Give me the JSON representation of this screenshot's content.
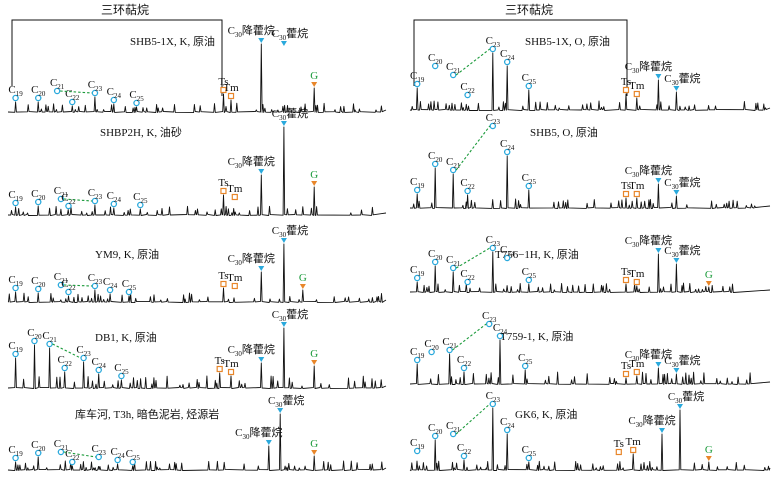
{
  "header_left": "三环萜烷",
  "header_right": "三环萜烷",
  "panels": [
    {
      "title": "SHB5-1X, K, 原油",
      "peaks": [
        {
          "label": "C19",
          "kind": "tricyclic"
        },
        {
          "label": "C20",
          "kind": "tricyclic"
        },
        {
          "label": "C21",
          "kind": "tricyclic"
        },
        {
          "label": "C22",
          "kind": "tricyclic"
        },
        {
          "label": "C23",
          "kind": "tricyclic"
        },
        {
          "label": "C24",
          "kind": "tricyclic"
        },
        {
          "label": "C25",
          "kind": "tricyclic"
        },
        {
          "label": "Ts",
          "kind": "ts"
        },
        {
          "label": "Tm",
          "kind": "tm"
        },
        {
          "label": "C30降藿烷",
          "kind": "hopane"
        },
        {
          "label": "C30藿烷",
          "kind": "hopane"
        },
        {
          "label": "G",
          "kind": "gammacerane"
        }
      ]
    },
    {
      "title": "SHBP2H, K, 油砂",
      "peaks": [
        {
          "label": "C19",
          "kind": "tricyclic"
        },
        {
          "label": "C20",
          "kind": "tricyclic"
        },
        {
          "label": "C21",
          "kind": "tricyclic"
        },
        {
          "label": "C22",
          "kind": "tricyclic"
        },
        {
          "label": "C23",
          "kind": "tricyclic"
        },
        {
          "label": "C24",
          "kind": "tricyclic"
        },
        {
          "label": "C25",
          "kind": "tricyclic"
        },
        {
          "label": "Ts",
          "kind": "ts"
        },
        {
          "label": "Tm",
          "kind": "tm"
        },
        {
          "label": "C30降藿烷",
          "kind": "hopane"
        },
        {
          "label": "C30藿烷",
          "kind": "hopane"
        },
        {
          "label": "G",
          "kind": "gammacerane"
        }
      ]
    },
    {
      "title": "YM9, K, 原油",
      "peaks": [
        {
          "label": "C19",
          "kind": "tricyclic"
        },
        {
          "label": "C20",
          "kind": "tricyclic"
        },
        {
          "label": "C21",
          "kind": "tricyclic"
        },
        {
          "label": "C22",
          "kind": "tricyclic"
        },
        {
          "label": "C23",
          "kind": "tricyclic"
        },
        {
          "label": "C24",
          "kind": "tricyclic"
        },
        {
          "label": "C25",
          "kind": "tricyclic"
        },
        {
          "label": "Ts",
          "kind": "ts"
        },
        {
          "label": "Tm",
          "kind": "tm"
        },
        {
          "label": "C30降藿烷",
          "kind": "hopane"
        },
        {
          "label": "C30藿烷",
          "kind": "hopane"
        },
        {
          "label": "G",
          "kind": "gammacerane"
        }
      ]
    },
    {
      "title": "DB1, K, 原油",
      "peaks": [
        {
          "label": "C19",
          "kind": "tricyclic"
        },
        {
          "label": "C20",
          "kind": "tricyclic"
        },
        {
          "label": "C21",
          "kind": "tricyclic"
        },
        {
          "label": "C22",
          "kind": "tricyclic"
        },
        {
          "label": "C23",
          "kind": "tricyclic"
        },
        {
          "label": "C24",
          "kind": "tricyclic"
        },
        {
          "label": "C25",
          "kind": "tricyclic"
        },
        {
          "label": "Ts",
          "kind": "ts"
        },
        {
          "label": "Tm",
          "kind": "tm"
        },
        {
          "label": "C30降藿烷",
          "kind": "hopane"
        },
        {
          "label": "C30藿烷",
          "kind": "hopane"
        },
        {
          "label": "G",
          "kind": "gammacerane"
        }
      ]
    },
    {
      "title": "库车河, T3h, 暗色泥岩, 烃源岩",
      "peaks": [
        {
          "label": "C19",
          "kind": "tricyclic"
        },
        {
          "label": "C20",
          "kind": "tricyclic"
        },
        {
          "label": "C21",
          "kind": "tricyclic"
        },
        {
          "label": "C22",
          "kind": "tricyclic"
        },
        {
          "label": "C23",
          "kind": "tricyclic"
        },
        {
          "label": "C24",
          "kind": "tricyclic"
        },
        {
          "label": "C25",
          "kind": "tricyclic"
        },
        {
          "label": "C30降藿烷",
          "kind": "hopane"
        },
        {
          "label": "C30藿烷",
          "kind": "hopane"
        },
        {
          "label": "G",
          "kind": "gammacerane"
        }
      ]
    },
    {
      "title": "SHB5-1X, O, 原油",
      "peaks": [
        {
          "label": "C19",
          "kind": "tricyclic"
        },
        {
          "label": "C20",
          "kind": "tricyclic"
        },
        {
          "label": "C21",
          "kind": "tricyclic"
        },
        {
          "label": "C22",
          "kind": "tricyclic"
        },
        {
          "label": "C23",
          "kind": "tricyclic"
        },
        {
          "label": "C24",
          "kind": "tricyclic"
        },
        {
          "label": "C25",
          "kind": "tricyclic"
        },
        {
          "label": "Ts",
          "kind": "ts"
        },
        {
          "label": "Tm",
          "kind": "tm"
        },
        {
          "label": "C30降藿烷",
          "kind": "hopane"
        },
        {
          "label": "C30藿烷",
          "kind": "hopane"
        }
      ]
    },
    {
      "title": "SHB5, O, 原油",
      "peaks": [
        {
          "label": "C19",
          "kind": "tricyclic"
        },
        {
          "label": "C20",
          "kind": "tricyclic"
        },
        {
          "label": "C21",
          "kind": "tricyclic"
        },
        {
          "label": "C22",
          "kind": "tricyclic"
        },
        {
          "label": "C23",
          "kind": "tricyclic"
        },
        {
          "label": "C24",
          "kind": "tricyclic"
        },
        {
          "label": "C25",
          "kind": "tricyclic"
        },
        {
          "label": "Ts",
          "kind": "ts"
        },
        {
          "label": "Tm",
          "kind": "tm"
        },
        {
          "label": "C30降藿烷",
          "kind": "hopane"
        },
        {
          "label": "C30藿烷",
          "kind": "hopane"
        }
      ]
    },
    {
      "title": "T756−1H, K, 原油",
      "peaks": [
        {
          "label": "C19",
          "kind": "tricyclic"
        },
        {
          "label": "C20",
          "kind": "tricyclic"
        },
        {
          "label": "C21",
          "kind": "tricyclic"
        },
        {
          "label": "C22",
          "kind": "tricyclic"
        },
        {
          "label": "C23",
          "kind": "tricyclic"
        },
        {
          "label": "C24",
          "kind": "tricyclic"
        },
        {
          "label": "C25",
          "kind": "tricyclic"
        },
        {
          "label": "Ts",
          "kind": "ts"
        },
        {
          "label": "Tm",
          "kind": "tm"
        },
        {
          "label": "C30降藿烷",
          "kind": "hopane"
        },
        {
          "label": "C30藿烷",
          "kind": "hopane"
        },
        {
          "label": "G",
          "kind": "gammacerane"
        }
      ]
    },
    {
      "title": "T759-1, K, 原油",
      "peaks": [
        {
          "label": "C19",
          "kind": "tricyclic"
        },
        {
          "label": "C20",
          "kind": "tricyclic"
        },
        {
          "label": "C21",
          "kind": "tricyclic"
        },
        {
          "label": "C22",
          "kind": "tricyclic"
        },
        {
          "label": "C23",
          "kind": "tricyclic"
        },
        {
          "label": "C24",
          "kind": "tricyclic"
        },
        {
          "label": "C25",
          "kind": "tricyclic"
        },
        {
          "label": "Ts",
          "kind": "ts"
        },
        {
          "label": "Tm",
          "kind": "tm"
        },
        {
          "label": "C30降藿烷",
          "kind": "hopane"
        },
        {
          "label": "C30藿烷",
          "kind": "hopane"
        }
      ]
    },
    {
      "title": "GK6, K, 原油",
      "peaks": [
        {
          "label": "C19",
          "kind": "tricyclic"
        },
        {
          "label": "C20",
          "kind": "tricyclic"
        },
        {
          "label": "C21",
          "kind": "tricyclic"
        },
        {
          "label": "C22",
          "kind": "tricyclic"
        },
        {
          "label": "C23",
          "kind": "tricyclic"
        },
        {
          "label": "C24",
          "kind": "tricyclic"
        },
        {
          "label": "C25",
          "kind": "tricyclic"
        },
        {
          "label": "Ts",
          "kind": "ts"
        },
        {
          "label": "Tm",
          "kind": "tm"
        },
        {
          "label": "C30降藿烷",
          "kind": "hopane"
        },
        {
          "label": "C30藿烷",
          "kind": "hopane"
        },
        {
          "label": "G",
          "kind": "gammacerane"
        }
      ]
    }
  ],
  "colors": {
    "trace": "#111111",
    "tricyclic_marker": "#2aa9dc",
    "hopane_marker": "#2aa9dc",
    "ts_tm_marker": "#e8862a",
    "gammacerane_marker": "#1a9a3a",
    "connector": "#1a9a3a"
  }
}
